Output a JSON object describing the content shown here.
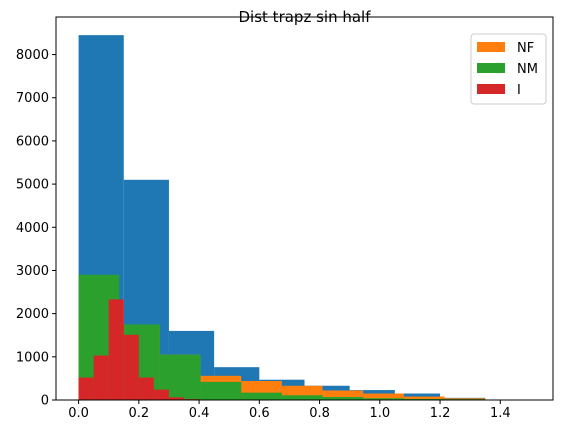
{
  "chart_data": {
    "type": "bar",
    "title": "Dist trapz sin half",
    "xlabel": "",
    "ylabel": "",
    "xlim": [
      -0.075,
      1.575
    ],
    "ylim": [
      0,
      8870
    ],
    "xticks": [
      0.0,
      0.2,
      0.4,
      0.6,
      0.8,
      1.0,
      1.2,
      1.4
    ],
    "yticks": [
      0,
      1000,
      2000,
      3000,
      4000,
      5000,
      6000,
      7000,
      8000
    ],
    "xtick_labels": [
      "0.0",
      "0.2",
      "0.4",
      "0.6",
      "0.8",
      "1.0",
      "1.2",
      "1.4"
    ],
    "ytick_labels": [
      "0",
      "1000",
      "2000",
      "3000",
      "4000",
      "5000",
      "6000",
      "7000",
      "8000"
    ],
    "legend_position": "upper right",
    "series": [
      {
        "label": "",
        "color": "#1f77b4",
        "in_legend": false,
        "edges": [
          0.0,
          0.15,
          0.3,
          0.45,
          0.6,
          0.75,
          0.9,
          1.05,
          1.2,
          1.35,
          1.5
        ],
        "counts": [
          8450,
          5100,
          1600,
          760,
          470,
          330,
          230,
          150,
          50,
          10
        ]
      },
      {
        "label": "NF",
        "color": "#ff7f0e",
        "in_legend": true,
        "edges": [
          0.0,
          0.135,
          0.27,
          0.405,
          0.54,
          0.675,
          0.81,
          0.945,
          1.08,
          1.215,
          1.35
        ],
        "counts": [
          1900,
          1700,
          1050,
          560,
          440,
          330,
          220,
          150,
          80,
          40
        ]
      },
      {
        "label": "NM",
        "color": "#2ca02c",
        "in_legend": true,
        "edges": [
          0.0,
          0.135,
          0.27,
          0.405,
          0.54,
          0.675,
          0.81,
          0.945,
          1.08,
          1.215,
          1.35
        ],
        "counts": [
          2900,
          1750,
          1050,
          420,
          170,
          110,
          70,
          40,
          25,
          20
        ]
      },
      {
        "label": "I",
        "color": "#d62728",
        "in_legend": true,
        "edges": [
          0.0,
          0.05,
          0.1,
          0.15,
          0.2,
          0.25,
          0.3,
          0.35,
          0.4,
          0.45,
          0.5
        ],
        "counts": [
          520,
          1030,
          2330,
          1510,
          520,
          240,
          60,
          20,
          5,
          0
        ]
      }
    ]
  }
}
